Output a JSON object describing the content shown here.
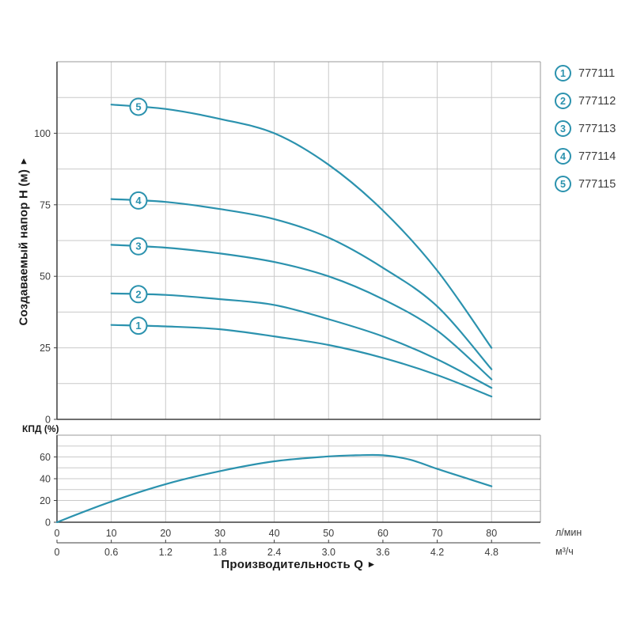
{
  "colors": {
    "curve": "#2B92AE",
    "grid": "#C9C9C9",
    "frame": "#999999",
    "axis": "#3F3F3F",
    "text": "#3C3C3C",
    "title": "#1A1A1A"
  },
  "axis": {
    "y_label": "Создаваемый напор H (м)",
    "y_arrow": "►",
    "x_label": "Производительность Q",
    "x_arrow": "►",
    "eff_label": "КПД (%)",
    "unit_primary": "л/мин",
    "unit_secondary": "м³/ч"
  },
  "legend": {
    "items": [
      {
        "number": "1",
        "code": "777111"
      },
      {
        "number": "2",
        "code": "777112"
      },
      {
        "number": "3",
        "code": "777113"
      },
      {
        "number": "4",
        "code": "777114"
      },
      {
        "number": "5",
        "code": "777115"
      }
    ]
  },
  "chart_data": [
    {
      "type": "line",
      "name": "head-flow-curves",
      "title": "",
      "xlabel": "Производительность Q",
      "ylabel": "Создаваемый напор H (м)",
      "x_unit": "л/мин",
      "x_unit_secondary": "м³/ч",
      "xlim": [
        0,
        89
      ],
      "ylim": [
        0,
        125
      ],
      "grid": true,
      "y_grid_step": 12.5,
      "y_ticks": [
        0,
        25,
        50,
        75,
        100
      ],
      "x_ticks": [
        0,
        10,
        20,
        30,
        40,
        50,
        60,
        70,
        80
      ],
      "x_ticks_secondary": [
        "0",
        "0.6",
        "1.2",
        "1.8",
        "2.4",
        "3.0",
        "3.6",
        "4.2",
        "4.8"
      ],
      "curve_marker_q": 15,
      "series": [
        {
          "name": "777111",
          "label": "1",
          "points": [
            [
              10,
              33
            ],
            [
              20,
              32.5
            ],
            [
              30,
              31.5
            ],
            [
              40,
              29
            ],
            [
              50,
              26
            ],
            [
              60,
              21.5
            ],
            [
              70,
              15.5
            ],
            [
              80,
              8
            ]
          ]
        },
        {
          "name": "777112",
          "label": "2",
          "points": [
            [
              10,
              44
            ],
            [
              20,
              43.5
            ],
            [
              30,
              42
            ],
            [
              40,
              40
            ],
            [
              50,
              35
            ],
            [
              60,
              29
            ],
            [
              70,
              21
            ],
            [
              80,
              11
            ]
          ]
        },
        {
          "name": "777113",
          "label": "3",
          "points": [
            [
              10,
              61
            ],
            [
              20,
              60
            ],
            [
              30,
              58
            ],
            [
              40,
              55
            ],
            [
              50,
              50
            ],
            [
              60,
              42
            ],
            [
              70,
              31
            ],
            [
              80,
              14
            ]
          ]
        },
        {
          "name": "777114",
          "label": "4",
          "points": [
            [
              10,
              77
            ],
            [
              20,
              76
            ],
            [
              30,
              73.5
            ],
            [
              40,
              70
            ],
            [
              50,
              63.5
            ],
            [
              60,
              53
            ],
            [
              70,
              39.5
            ],
            [
              80,
              17.5
            ]
          ]
        },
        {
          "name": "777115",
          "label": "5",
          "points": [
            [
              10,
              110
            ],
            [
              20,
              108.5
            ],
            [
              30,
              105
            ],
            [
              40,
              100
            ],
            [
              50,
              89
            ],
            [
              60,
              73
            ],
            [
              70,
              52
            ],
            [
              80,
              25
            ]
          ]
        }
      ]
    },
    {
      "type": "line",
      "name": "efficiency-curve",
      "title": "",
      "ylabel": "КПД (%)",
      "ylim": [
        0,
        80
      ],
      "grid": true,
      "y_grid_step": 10,
      "y_ticks": [
        0,
        20,
        40,
        60
      ],
      "series": [
        {
          "name": "КПД",
          "label": "",
          "points": [
            [
              0,
              0
            ],
            [
              10,
              19
            ],
            [
              20,
              35
            ],
            [
              30,
              47
            ],
            [
              40,
              56
            ],
            [
              50,
              60.5
            ],
            [
              55,
              61.5
            ],
            [
              60,
              61.5
            ],
            [
              65,
              57.5
            ],
            [
              70,
              49
            ],
            [
              75,
              41
            ],
            [
              80,
              33
            ]
          ]
        }
      ]
    }
  ]
}
